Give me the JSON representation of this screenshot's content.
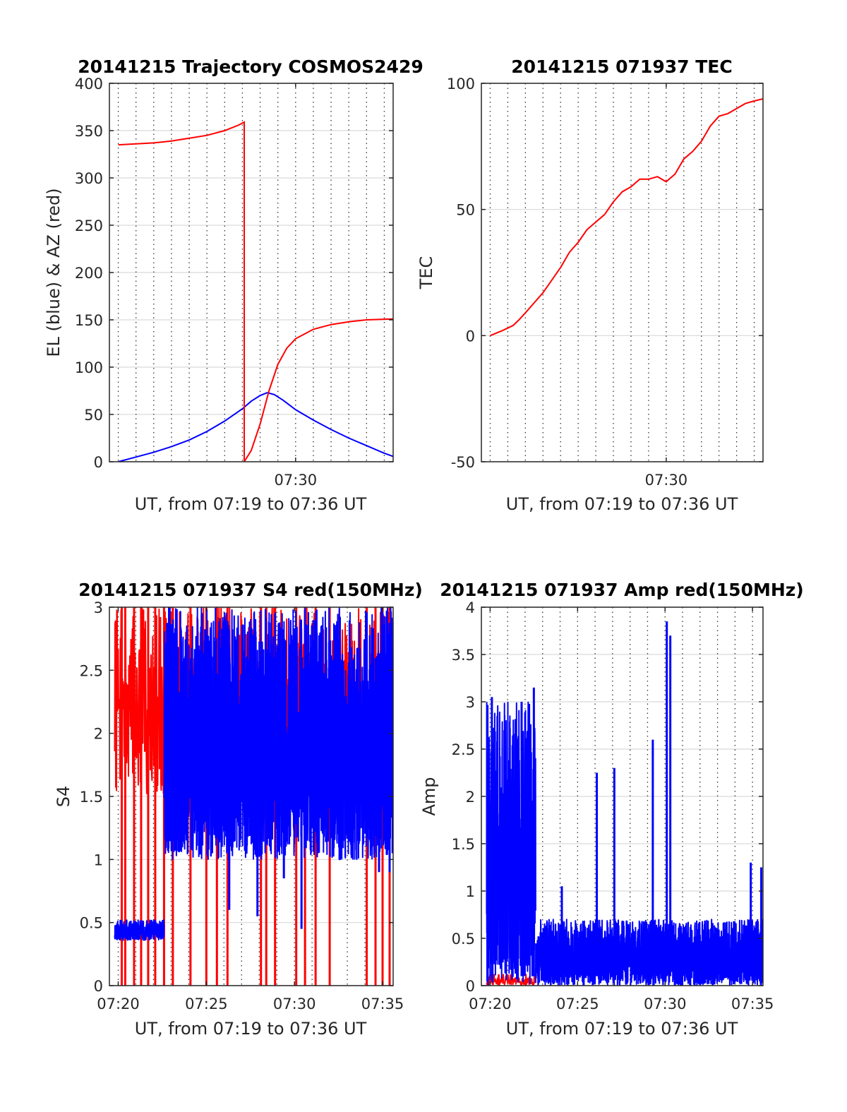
{
  "figure": {
    "colors": {
      "elevation": "#0000ff",
      "azimuth": "#ff0000",
      "grid": "#d9d9d9",
      "axis": "#262626"
    }
  },
  "chart_data": [
    {
      "id": "trajectory",
      "type": "line",
      "title": "20141215 Trajectory COSMOS2429",
      "xlabel": "UT, from 07:19 to 07:36 UT",
      "ylabel": "EL (blue) & AZ (red)",
      "xlim": [
        19.5,
        35.5
      ],
      "ylim": [
        0,
        400
      ],
      "yticks": [
        0,
        50,
        100,
        150,
        200,
        250,
        300,
        350,
        400
      ],
      "xticks": [
        {
          "value": 30,
          "label": "07:30"
        }
      ],
      "minor_grid_every_min": 1,
      "grid": true,
      "series": [
        {
          "name": "",
          "color": "#0000ff",
          "points": [
            [
              20,
              0
            ],
            [
              21,
              5
            ],
            [
              22,
              10
            ],
            [
              23,
              16
            ],
            [
              24,
              23
            ],
            [
              25,
              32
            ],
            [
              26,
              43
            ],
            [
              27,
              56
            ],
            [
              27.5,
              64
            ],
            [
              28,
              70
            ],
            [
              28.4,
              73
            ],
            [
              28.8,
              71
            ],
            [
              29.3,
              65
            ],
            [
              30,
              55
            ],
            [
              31,
              44
            ],
            [
              32,
              34
            ],
            [
              33,
              25
            ],
            [
              34,
              17
            ],
            [
              35,
              9
            ],
            [
              35.6,
              5
            ]
          ]
        },
        {
          "name": "",
          "color": "#ff0000",
          "points": [
            [
              20,
              335
            ],
            [
              21,
              336
            ],
            [
              22,
              337
            ],
            [
              23,
              339
            ],
            [
              24,
              342
            ],
            [
              25,
              345
            ],
            [
              26,
              350
            ],
            [
              26.8,
              356
            ],
            [
              27.1,
              359
            ],
            [
              27.1,
              0
            ],
            [
              27.5,
              12
            ],
            [
              28,
              40
            ],
            [
              28.5,
              75
            ],
            [
              29,
              103
            ],
            [
              29.5,
              120
            ],
            [
              30,
              130
            ],
            [
              31,
              140
            ],
            [
              32,
              145
            ],
            [
              33,
              148
            ],
            [
              34,
              150
            ],
            [
              35.6,
              151
            ]
          ]
        }
      ]
    },
    {
      "id": "tec",
      "type": "line",
      "title": "20141215 071937 TEC",
      "xlabel": "UT, from 07:19 to 07:36 UT",
      "ylabel": "TEC",
      "xlim": [
        19.5,
        35.5
      ],
      "ylim": [
        -50,
        100
      ],
      "yticks": [
        -50,
        0,
        50,
        100
      ],
      "xticks": [
        {
          "value": 30,
          "label": "07:30"
        }
      ],
      "minor_grid_every_min": 1,
      "grid": true,
      "series": [
        {
          "name": "",
          "color": "#ff0000",
          "points": [
            [
              20,
              0
            ],
            [
              20.7,
              2
            ],
            [
              21.3,
              4
            ],
            [
              21.6,
              6
            ],
            [
              22,
              9
            ],
            [
              22.5,
              13
            ],
            [
              23,
              17
            ],
            [
              23.5,
              22
            ],
            [
              24,
              27
            ],
            [
              24.5,
              33
            ],
            [
              25,
              37
            ],
            [
              25.5,
              42
            ],
            [
              26,
              45
            ],
            [
              26.5,
              48
            ],
            [
              27,
              53
            ],
            [
              27.5,
              57
            ],
            [
              28,
              59
            ],
            [
              28.5,
              62
            ],
            [
              29,
              62
            ],
            [
              29.5,
              63
            ],
            [
              30,
              61
            ],
            [
              30.5,
              64
            ],
            [
              31,
              70
            ],
            [
              31.5,
              73
            ],
            [
              32,
              77
            ],
            [
              32.5,
              83
            ],
            [
              33,
              87
            ],
            [
              33.5,
              88
            ],
            [
              34,
              90
            ],
            [
              34.5,
              92
            ],
            [
              35,
              93
            ],
            [
              35.6,
              94
            ]
          ]
        }
      ]
    },
    {
      "id": "s4",
      "type": "line",
      "title": "20141215 071937 S4 red(150MHz)",
      "xlabel": "UT, from 07:19 to 07:36 UT",
      "ylabel": "S4",
      "xlim": [
        19.5,
        35.6
      ],
      "ylim": [
        0,
        3
      ],
      "yticks": [
        0,
        0.5,
        1,
        1.5,
        2,
        2.5,
        3
      ],
      "xticks": [
        {
          "value": 20,
          "label": "07:20"
        },
        {
          "value": 25,
          "label": "07:25"
        },
        {
          "value": 30,
          "label": "07:30"
        },
        {
          "value": 35,
          "label": "07:35"
        }
      ],
      "minor_grid_every_min": 1,
      "grid": true,
      "series": [
        {
          "name": "",
          "color": "#ff0000",
          "noise": {
            "x_start": 19.8,
            "x_end": 35.5,
            "step": 0.04,
            "low": 1.5,
            "high": 3.0,
            "seed": 7
          },
          "drops_to_zero": [
            20.2,
            20.4,
            20.9,
            21.3,
            21.7,
            22.1,
            22.6,
            23.1,
            24.1,
            25.0,
            25.6,
            26.2,
            28.1,
            28.4,
            28.9,
            30.1,
            30.6,
            31.2,
            32.0,
            34.1,
            34.6,
            35.0,
            35.4
          ]
        },
        {
          "name": "",
          "color": "#0000ff",
          "segments": [
            {
              "x_start": 19.8,
              "x_end": 22.6,
              "low": 0.36,
              "high": 0.52,
              "seed": 11
            },
            {
              "x_start": 22.6,
              "x_end": 35.6,
              "low": 1.0,
              "high": 3.0,
              "seed": 23
            }
          ],
          "dips": [
            [
              26.3,
              0.6
            ],
            [
              27.9,
              0.55
            ],
            [
              29.4,
              0.85
            ],
            [
              30.4,
              0.45
            ],
            [
              34.8,
              0.9
            ],
            [
              35.4,
              0.9
            ]
          ]
        }
      ]
    },
    {
      "id": "amp",
      "type": "line",
      "title": "20141215 071937 Amp red(150MHz)",
      "xlabel": "UT, from 07:19 to 07:36 UT",
      "ylabel": "Amp",
      "xlim": [
        19.5,
        35.6
      ],
      "ylim": [
        0,
        4
      ],
      "yticks": [
        0,
        0.5,
        1,
        1.5,
        2,
        2.5,
        3,
        3.5,
        4
      ],
      "xticks": [
        {
          "value": 20,
          "label": "07:20"
        },
        {
          "value": 25,
          "label": "07:25"
        },
        {
          "value": 30,
          "label": "07:30"
        },
        {
          "value": 35,
          "label": "07:35"
        }
      ],
      "minor_grid_every_min": 1,
      "grid": true,
      "series": [
        {
          "name": "",
          "color": "#ff0000",
          "noise": {
            "x_start": 19.8,
            "x_end": 22.6,
            "step": 0.05,
            "low": 0,
            "high": 0.12,
            "seed": 31
          }
        },
        {
          "name": "",
          "color": "#0000ff",
          "segments": [
            {
              "x_start": 19.8,
              "x_end": 22.6,
              "low": 0.0,
              "high": 3.0,
              "seed": 41
            },
            {
              "x_start": 22.6,
              "x_end": 35.6,
              "low": 0.0,
              "high": 0.7,
              "seed": 53
            }
          ],
          "spikes": [
            [
              20.1,
              3.05
            ],
            [
              21.8,
              3.0
            ],
            [
              22.5,
              3.15
            ],
            [
              24.1,
              1.05
            ],
            [
              26.1,
              2.25
            ],
            [
              27.1,
              2.3
            ],
            [
              29.3,
              2.6
            ],
            [
              30.1,
              3.85
            ],
            [
              30.3,
              3.7
            ],
            [
              34.9,
              1.3
            ],
            [
              35.5,
              1.25
            ]
          ]
        }
      ]
    }
  ]
}
